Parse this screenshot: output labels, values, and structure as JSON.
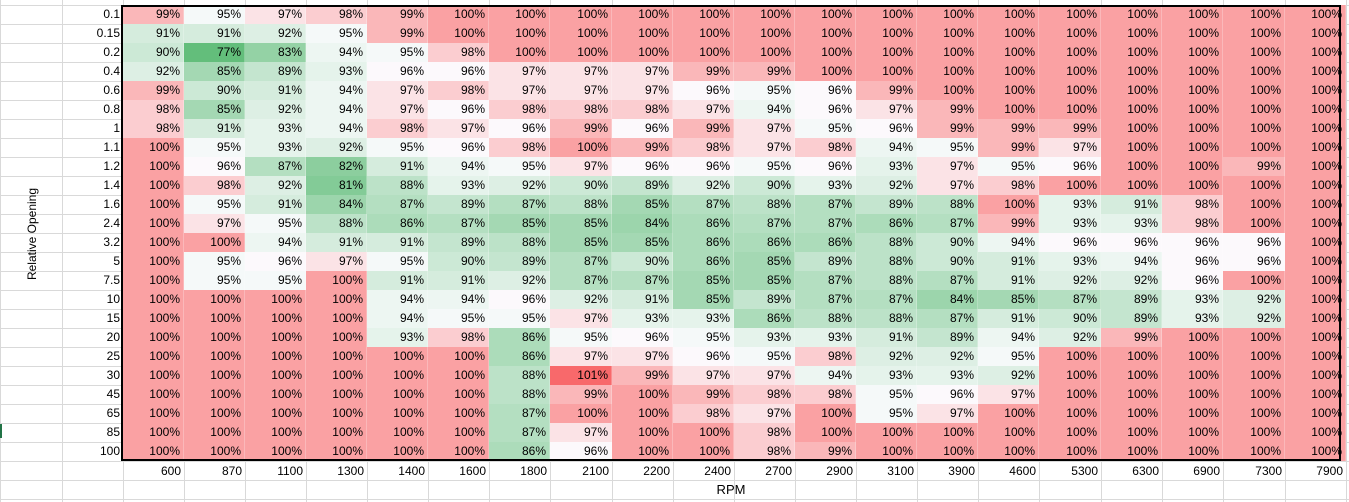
{
  "axis": {
    "y_title": "Relative Opening",
    "x_title": "RPM"
  },
  "rpm": [
    "600",
    "870",
    "1100",
    "1300",
    "1400",
    "1600",
    "1800",
    "2100",
    "2200",
    "2400",
    "2700",
    "2900",
    "3100",
    "3900",
    "4600",
    "5300",
    "6300",
    "6900",
    "7300",
    "7900"
  ],
  "openings": [
    "0.1",
    "0.15",
    "0.2",
    "0.4",
    "0.6",
    "0.8",
    "1",
    "1.1",
    "1.2",
    "1.4",
    "1.6",
    "2.4",
    "3.2",
    "5",
    "7.5",
    "10",
    "15",
    "20",
    "25",
    "30",
    "45",
    "65",
    "85",
    "100"
  ],
  "values": [
    [
      99,
      95,
      97,
      98,
      99,
      100,
      100,
      100,
      100,
      100,
      100,
      100,
      100,
      100,
      100,
      100,
      100,
      100,
      100,
      100
    ],
    [
      91,
      91,
      92,
      95,
      99,
      100,
      100,
      100,
      100,
      100,
      100,
      100,
      100,
      100,
      100,
      100,
      100,
      100,
      100,
      100
    ],
    [
      90,
      77,
      83,
      94,
      95,
      98,
      100,
      100,
      100,
      100,
      100,
      100,
      100,
      100,
      100,
      100,
      100,
      100,
      100,
      100
    ],
    [
      92,
      85,
      89,
      93,
      96,
      96,
      97,
      97,
      97,
      99,
      99,
      100,
      100,
      100,
      100,
      100,
      100,
      100,
      100,
      100
    ],
    [
      99,
      90,
      91,
      94,
      97,
      98,
      97,
      97,
      97,
      96,
      95,
      96,
      99,
      100,
      100,
      100,
      100,
      100,
      100,
      100
    ],
    [
      98,
      85,
      92,
      94,
      97,
      96,
      98,
      98,
      98,
      97,
      94,
      96,
      97,
      99,
      100,
      100,
      100,
      100,
      100,
      100
    ],
    [
      98,
      91,
      93,
      94,
      98,
      97,
      96,
      99,
      96,
      99,
      97,
      95,
      96,
      99,
      99,
      99,
      100,
      100,
      100,
      100
    ],
    [
      100,
      95,
      93,
      92,
      95,
      96,
      98,
      100,
      99,
      98,
      97,
      98,
      94,
      95,
      99,
      97,
      100,
      100,
      100,
      100
    ],
    [
      100,
      96,
      87,
      82,
      91,
      94,
      95,
      97,
      96,
      96,
      95,
      96,
      93,
      97,
      95,
      96,
      100,
      100,
      99,
      100
    ],
    [
      100,
      98,
      92,
      81,
      88,
      93,
      92,
      90,
      89,
      92,
      90,
      93,
      92,
      97,
      98,
      100,
      100,
      100,
      100,
      100
    ],
    [
      100,
      95,
      91,
      84,
      87,
      89,
      87,
      88,
      85,
      87,
      88,
      87,
      89,
      88,
      100,
      93,
      91,
      98,
      100,
      100
    ],
    [
      100,
      97,
      95,
      88,
      86,
      87,
      85,
      85,
      84,
      86,
      87,
      87,
      86,
      87,
      99,
      93,
      93,
      98,
      100,
      100
    ],
    [
      100,
      100,
      94,
      91,
      91,
      89,
      88,
      85,
      85,
      86,
      86,
      86,
      88,
      90,
      94,
      96,
      96,
      96,
      96,
      100
    ],
    [
      100,
      95,
      96,
      97,
      95,
      90,
      89,
      87,
      90,
      86,
      85,
      89,
      88,
      90,
      91,
      93,
      94,
      96,
      96,
      100
    ],
    [
      100,
      95,
      95,
      100,
      91,
      91,
      92,
      87,
      87,
      85,
      85,
      87,
      88,
      87,
      91,
      92,
      92,
      96,
      100,
      100
    ],
    [
      100,
      100,
      100,
      100,
      94,
      94,
      96,
      92,
      91,
      85,
      89,
      87,
      87,
      84,
      85,
      87,
      89,
      93,
      92,
      100
    ],
    [
      100,
      100,
      100,
      100,
      94,
      95,
      95,
      97,
      93,
      93,
      86,
      88,
      88,
      87,
      91,
      90,
      89,
      93,
      92,
      100
    ],
    [
      100,
      100,
      100,
      100,
      93,
      98,
      86,
      95,
      96,
      95,
      93,
      93,
      91,
      89,
      94,
      92,
      99,
      100,
      100,
      100
    ],
    [
      100,
      100,
      100,
      100,
      100,
      100,
      86,
      97,
      97,
      96,
      95,
      98,
      92,
      92,
      95,
      100,
      100,
      100,
      100,
      100
    ],
    [
      100,
      100,
      100,
      100,
      100,
      100,
      88,
      101,
      99,
      97,
      97,
      94,
      93,
      93,
      92,
      100,
      100,
      100,
      100,
      100
    ],
    [
      100,
      100,
      100,
      100,
      100,
      100,
      88,
      99,
      100,
      99,
      98,
      98,
      95,
      96,
      97,
      100,
      100,
      100,
      100,
      100
    ],
    [
      100,
      100,
      100,
      100,
      100,
      100,
      87,
      100,
      100,
      98,
      97,
      100,
      95,
      97,
      100,
      100,
      100,
      100,
      100,
      100
    ],
    [
      100,
      100,
      100,
      100,
      100,
      100,
      87,
      97,
      100,
      100,
      98,
      100,
      100,
      100,
      100,
      100,
      100,
      100,
      100,
      100
    ],
    [
      100,
      100,
      100,
      100,
      100,
      100,
      86,
      96,
      100,
      100,
      98,
      99,
      100,
      100,
      100,
      100,
      100,
      100,
      100,
      100
    ]
  ],
  "unit": "%",
  "colors": {
    "good": "#63be7b",
    "mid": "#fcfcff",
    "bad": "#f8696b",
    "grid": "#d9d9d9"
  }
}
